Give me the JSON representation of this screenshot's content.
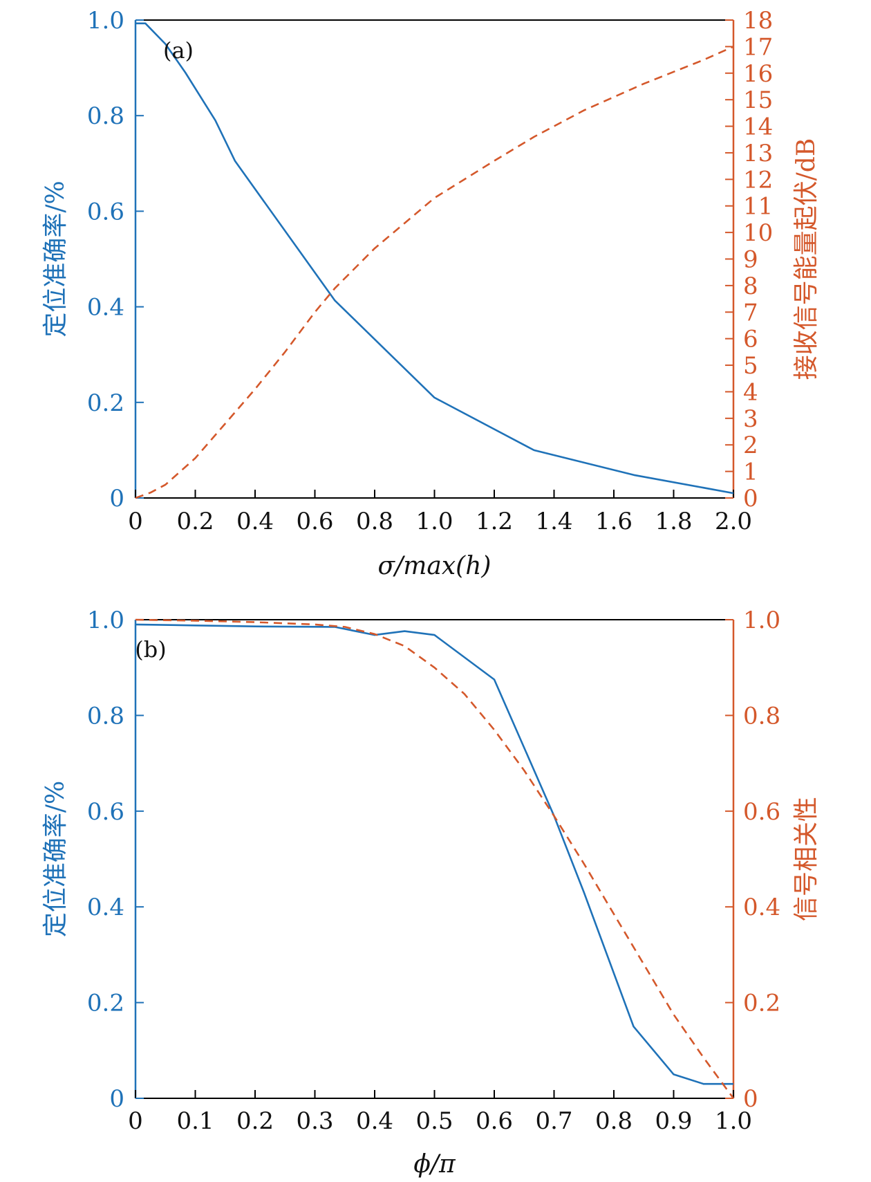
{
  "colors": {
    "left": "#1f72b8",
    "right": "#d4582b",
    "axis": "#000000",
    "text": "#111111"
  },
  "chart_data": [
    {
      "type": "line",
      "panel_label": "(a)",
      "xlabel": "σ/max(h)",
      "x_ticks": [
        "0",
        "0.2",
        "0.4",
        "0.6",
        "0.8",
        "1.0",
        "1.2",
        "1.4",
        "1.6",
        "1.8",
        "2.0"
      ],
      "xlim": [
        0,
        2.0
      ],
      "ylabel_left": "定位准确率/%",
      "ylim_left": [
        0,
        1.0
      ],
      "y_ticks_left": [
        "0",
        "0.2",
        "0.4",
        "0.6",
        "0.8",
        "1.0"
      ],
      "ylabel_right": "接收信号能量起伏/dB",
      "ylim_right": [
        0,
        18
      ],
      "y_ticks_right": [
        "0",
        "1",
        "2",
        "3",
        "4",
        "5",
        "6",
        "7",
        "8",
        "9",
        "10",
        "11",
        "12",
        "13",
        "14",
        "15",
        "16",
        "17",
        "18"
      ],
      "series": [
        {
          "name": "定位准确率",
          "axis": "left",
          "style": "solid",
          "x": [
            0,
            0.033,
            0.1,
            0.167,
            0.267,
            0.333,
            0.667,
            1.0,
            1.333,
            1.667,
            2.0
          ],
          "y": [
            0.993,
            0.993,
            0.95,
            0.89,
            0.79,
            0.705,
            0.413,
            0.21,
            0.1,
            0.048,
            0.01
          ]
        },
        {
          "name": "接收信号能量起伏",
          "axis": "right",
          "style": "dashed",
          "x": [
            0,
            0.05,
            0.1,
            0.2,
            0.3,
            0.4,
            0.5,
            0.6,
            0.667,
            0.8,
            1.0,
            1.2,
            1.333,
            1.5,
            1.7,
            1.9,
            2.0
          ],
          "y": [
            0,
            0.2,
            0.5,
            1.5,
            2.8,
            4.1,
            5.5,
            7.0,
            7.9,
            9.4,
            11.3,
            12.7,
            13.6,
            14.6,
            15.6,
            16.5,
            17.0
          ]
        }
      ]
    },
    {
      "type": "line",
      "panel_label": "(b)",
      "xlabel": "ϕ/π",
      "x_ticks": [
        "0",
        "0.1",
        "0.2",
        "0.3",
        "0.4",
        "0.5",
        "0.6",
        "0.7",
        "0.8",
        "0.9",
        "1.0"
      ],
      "xlim": [
        0,
        1.0
      ],
      "ylabel_left": "定位准确率/%",
      "ylim_left": [
        0,
        1.0
      ],
      "y_ticks_left": [
        "0",
        "0.2",
        "0.4",
        "0.6",
        "0.8",
        "1.0"
      ],
      "ylabel_right": "信号相关性",
      "ylim_right": [
        0,
        1.0
      ],
      "y_ticks_right": [
        "0",
        "0.2",
        "0.4",
        "0.6",
        "0.8",
        "1.0"
      ],
      "series": [
        {
          "name": "定位准确率",
          "axis": "left",
          "style": "solid",
          "x": [
            0,
            0.1,
            0.2,
            0.333,
            0.4,
            0.45,
            0.5,
            0.6,
            0.7,
            0.75,
            0.833,
            0.9,
            0.95,
            1.0
          ],
          "y": [
            0.99,
            0.988,
            0.986,
            0.985,
            0.968,
            0.976,
            0.968,
            0.875,
            0.59,
            0.43,
            0.15,
            0.05,
            0.03,
            0.03
          ]
        },
        {
          "name": "信号相关性",
          "axis": "right",
          "style": "dashed",
          "x": [
            0,
            0.1,
            0.2,
            0.3,
            0.35,
            0.4,
            0.45,
            0.5,
            0.55,
            0.6,
            0.65,
            0.7,
            0.75,
            0.8,
            0.85,
            0.9,
            0.95,
            1.0
          ],
          "y": [
            1.0,
            0.998,
            0.995,
            0.99,
            0.985,
            0.97,
            0.945,
            0.9,
            0.845,
            0.77,
            0.685,
            0.59,
            0.49,
            0.385,
            0.28,
            0.175,
            0.085,
            0.0
          ]
        }
      ]
    }
  ]
}
